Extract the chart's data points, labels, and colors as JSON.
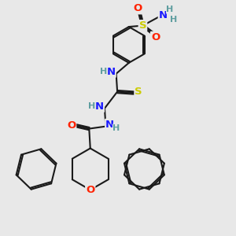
{
  "bg_color": "#e8e8e8",
  "bond_color": "#1a1a1a",
  "bond_width": 1.5,
  "atom_colors": {
    "O": "#ff2200",
    "N": "#1a1aff",
    "S": "#cccc00",
    "H": "#5f9ea0",
    "C": "#1a1a1a"
  },
  "font_size_atom": 9.5,
  "font_size_H": 8.0,
  "figsize": [
    3.0,
    3.0
  ],
  "dpi": 100,
  "xlim": [
    0,
    10
  ],
  "ylim": [
    0,
    10
  ]
}
